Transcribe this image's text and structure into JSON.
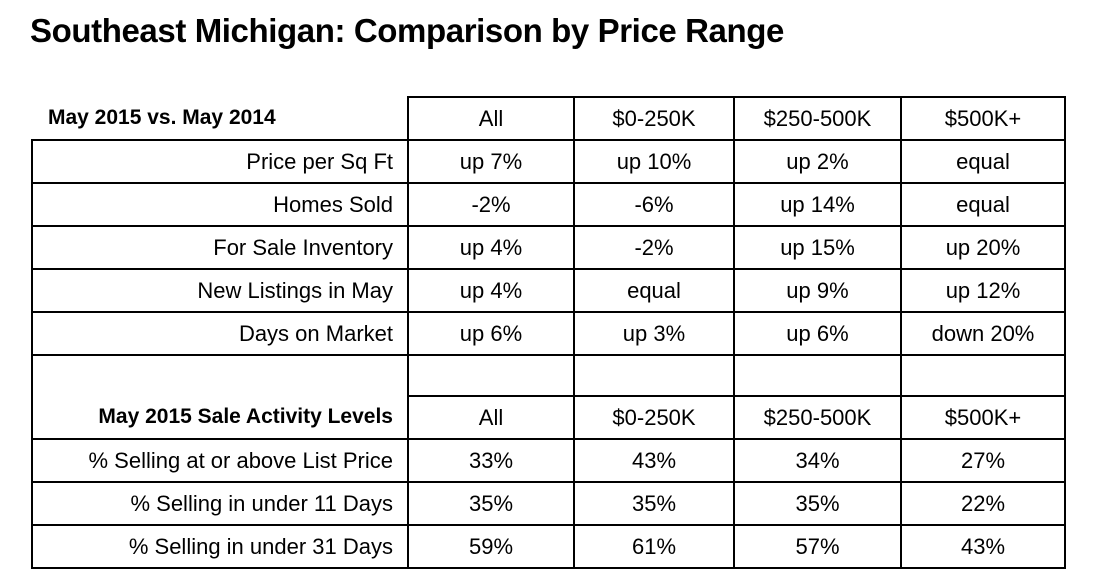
{
  "title": "Southeast Michigan: Comparison by Price Range",
  "columns": [
    "All",
    "$0-250K",
    "$250-500K",
    "$500K+"
  ],
  "comparison": {
    "heading": "May 2015 vs. May 2014",
    "rows": [
      {
        "label": "Price per Sq Ft",
        "values": [
          "up 7%",
          "up 10%",
          "up 2%",
          "equal"
        ]
      },
      {
        "label": "Homes Sold",
        "values": [
          "-2%",
          "-6%",
          "up 14%",
          "equal"
        ]
      },
      {
        "label": "For Sale Inventory",
        "values": [
          "up 4%",
          "-2%",
          "up 15%",
          "up 20%"
        ]
      },
      {
        "label": "New Listings in May",
        "values": [
          "up 4%",
          "equal",
          "up 9%",
          "up 12%"
        ]
      },
      {
        "label": "Days on Market",
        "values": [
          "up 6%",
          "up 3%",
          "up 6%",
          "down 20%"
        ]
      }
    ]
  },
  "activity": {
    "heading": "May 2015 Sale Activity Levels",
    "rows": [
      {
        "label": "% Selling at or above List Price",
        "values": [
          "33%",
          "43%",
          "34%",
          "27%"
        ]
      },
      {
        "label": "% Selling in under 11 Days",
        "values": [
          "35%",
          "35%",
          "35%",
          "22%"
        ]
      },
      {
        "label": "% Selling in under 31 Days",
        "values": [
          "59%",
          "61%",
          "57%",
          "43%"
        ]
      }
    ]
  }
}
